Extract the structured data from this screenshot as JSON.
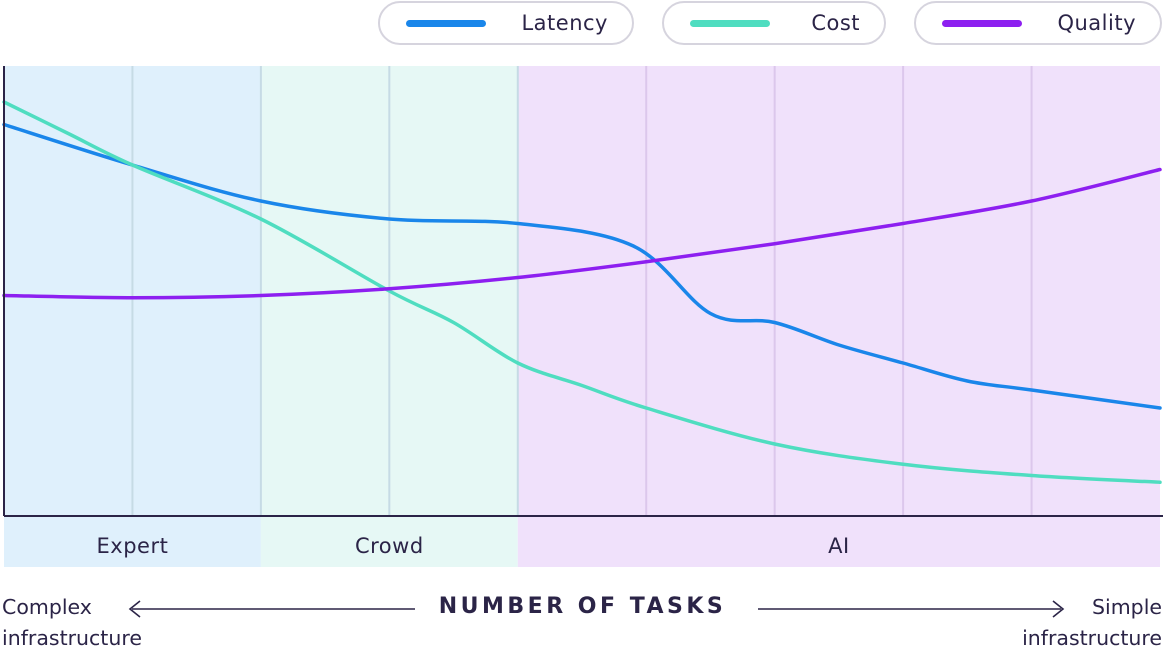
{
  "chart_data": {
    "type": "line",
    "title": "",
    "xlabel": "NUMBER OF TASKS",
    "ylabel": "",
    "x_left_label_line1": "Complex",
    "x_left_label_line2": "infrastructure",
    "x_right_label_line1": "Simple",
    "x_right_label_line2": "infrastructure",
    "xlim": [
      0,
      9
    ],
    "ylim": [
      0,
      100
    ],
    "grid": true,
    "legend_position": "top-right",
    "regions": [
      {
        "label": "Expert",
        "x_start": 0,
        "x_end": 2,
        "color": "#dff0fc"
      },
      {
        "label": "Crowd",
        "x_start": 2,
        "x_end": 4,
        "color": "#e6f8f5"
      },
      {
        "label": "AI",
        "x_start": 4,
        "x_end": 9,
        "color": "#f0e1fb"
      }
    ],
    "series": [
      {
        "name": "Latency",
        "color": "#1a86ea",
        "points": [
          [
            0,
            87
          ],
          [
            1,
            78
          ],
          [
            2,
            70
          ],
          [
            3,
            66
          ],
          [
            4,
            65
          ],
          [
            4.9,
            60
          ],
          [
            5.5,
            45
          ],
          [
            6,
            43
          ],
          [
            6.5,
            38
          ],
          [
            7,
            34
          ],
          [
            7.5,
            30
          ],
          [
            8,
            28
          ],
          [
            9,
            24
          ]
        ]
      },
      {
        "name": "Cost",
        "color": "#4fddc0",
        "points": [
          [
            0,
            92
          ],
          [
            0.5,
            85
          ],
          [
            1,
            78
          ],
          [
            2,
            66
          ],
          [
            3,
            50
          ],
          [
            3.5,
            43
          ],
          [
            4,
            34
          ],
          [
            4.5,
            29
          ],
          [
            5,
            24
          ],
          [
            6,
            16
          ],
          [
            7,
            11.5
          ],
          [
            8,
            9
          ],
          [
            9,
            7.5
          ]
        ]
      },
      {
        "name": "Quality",
        "color": "#8d1ff0",
        "points": [
          [
            0,
            49
          ],
          [
            1,
            48.5
          ],
          [
            2,
            49
          ],
          [
            3,
            50.5
          ],
          [
            4,
            53
          ],
          [
            5,
            56.5
          ],
          [
            6,
            60.5
          ],
          [
            7,
            65
          ],
          [
            8,
            70
          ],
          [
            9,
            77
          ]
        ]
      }
    ]
  }
}
